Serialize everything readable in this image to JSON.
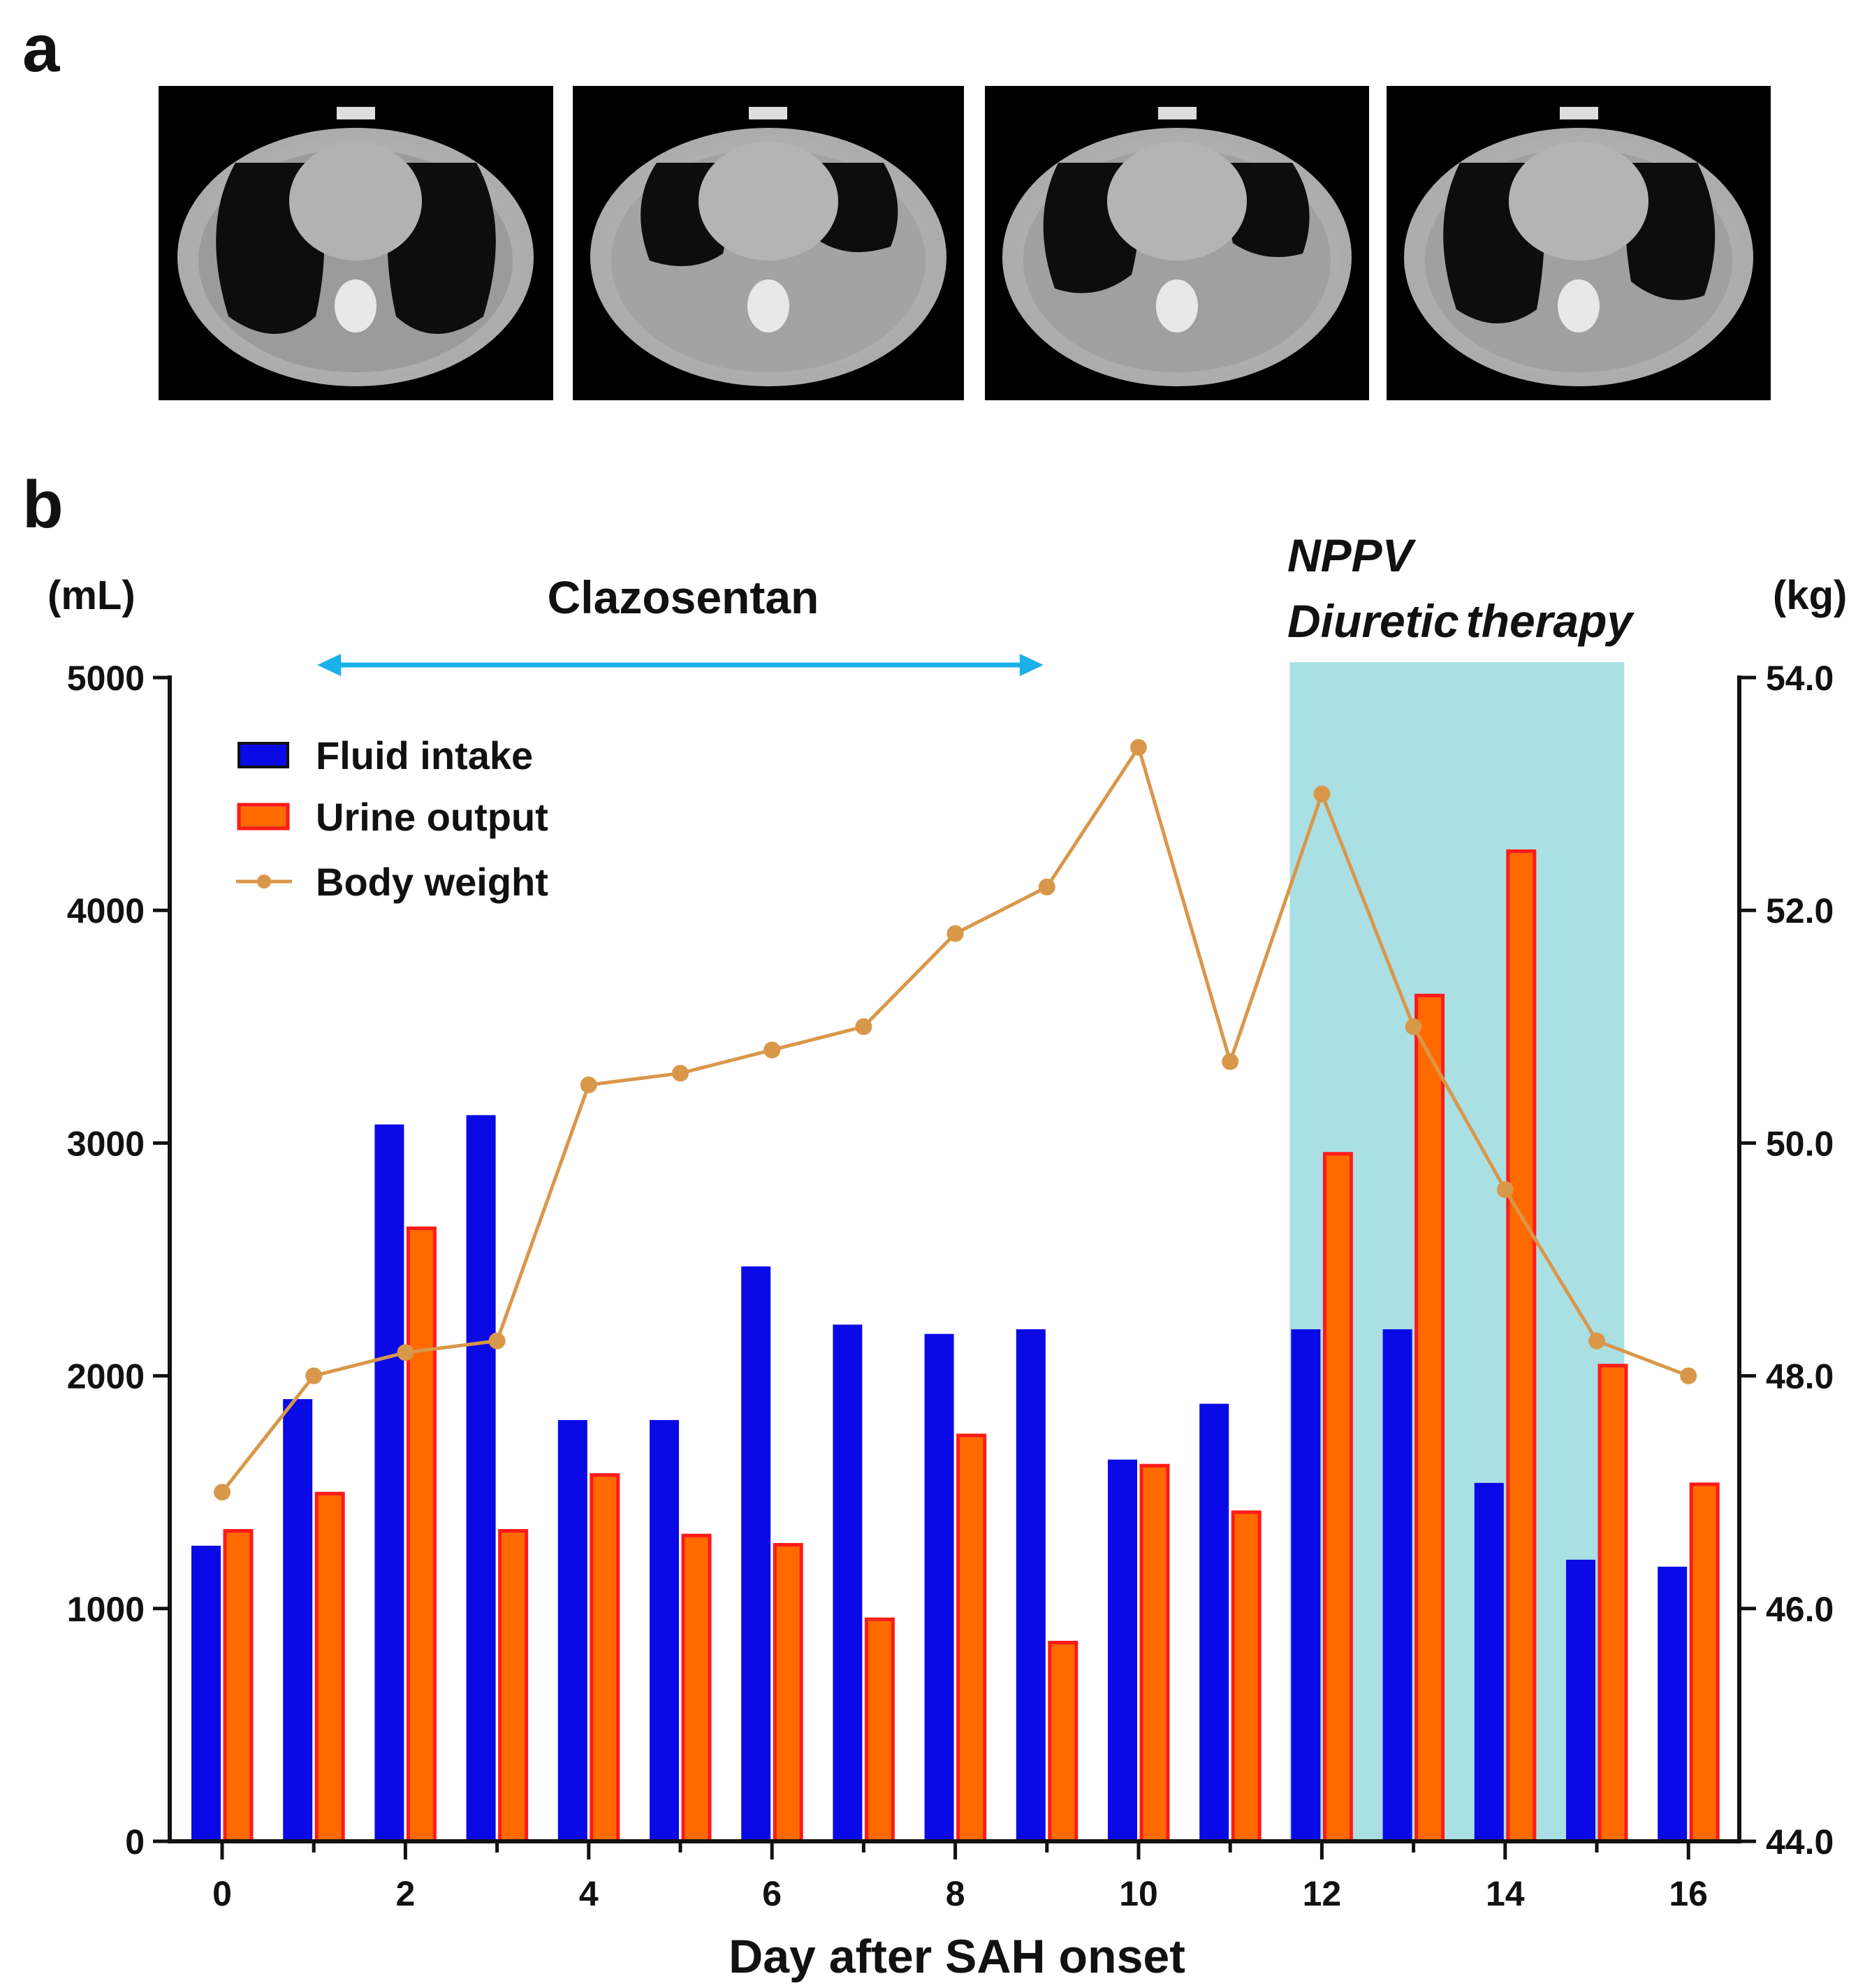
{
  "panels": {
    "a": "a",
    "b": "b"
  },
  "ct_scans": [
    {
      "id": "ct-1"
    },
    {
      "id": "ct-2"
    },
    {
      "id": "ct-3"
    },
    {
      "id": "ct-4"
    }
  ],
  "chart_data": {
    "type": "bar",
    "xlabel": "Day after SAH onset",
    "ylabel_left": "(mL)",
    "ylabel_right": "(kg)",
    "days": [
      0,
      1,
      2,
      3,
      4,
      5,
      6,
      7,
      8,
      9,
      10,
      11,
      12,
      13,
      14,
      15,
      16
    ],
    "x_ticks": [
      0,
      2,
      4,
      6,
      8,
      10,
      12,
      14,
      16
    ],
    "ylim_left": [
      0,
      5000
    ],
    "yticks_left": [
      0,
      1000,
      2000,
      3000,
      4000,
      5000
    ],
    "ylim_right": [
      44.0,
      54.0
    ],
    "yticks_right": [
      "44.0",
      "46.0",
      "48.0",
      "50.0",
      "52.0",
      "54.0"
    ],
    "series": [
      {
        "name": "Fluid intake",
        "color": "#0a0ae6",
        "values": [
          1270,
          1900,
          3080,
          3120,
          1810,
          1810,
          2470,
          2220,
          2180,
          2200,
          1640,
          1880,
          2200,
          2200,
          1540,
          1210,
          1180
        ]
      },
      {
        "name": "Urine output",
        "color": "#ff6a00",
        "edge": "#ff1a1a",
        "values": [
          1340,
          1500,
          2640,
          1340,
          1580,
          1320,
          1280,
          960,
          1750,
          860,
          1620,
          1420,
          2960,
          3640,
          4260,
          2050,
          1540
        ]
      },
      {
        "name": "Body weight",
        "color": "#d9974a",
        "axis": "right",
        "values": [
          47.0,
          48.0,
          48.2,
          48.3,
          50.5,
          50.6,
          50.8,
          51.0,
          51.8,
          52.2,
          53.4,
          50.7,
          53.0,
          51.0,
          49.6,
          48.3,
          48.0
        ]
      }
    ],
    "annotations": {
      "clazosentan": {
        "label": "Clazosentan",
        "from_day": 1,
        "to_day": 9,
        "color": "#1ab0ea"
      },
      "treatment": {
        "line1": "NPPV",
        "line2_a": "Diuretic",
        "line2_b": "therapy",
        "from_day": 11.65,
        "to_day": 15.3,
        "color": "#aae0e4"
      }
    }
  }
}
